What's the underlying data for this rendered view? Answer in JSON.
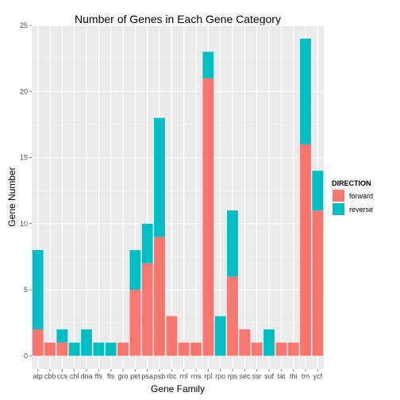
{
  "chart_data": {
    "type": "bar",
    "stacked": true,
    "title": "Number of Genes in Each Gene Category",
    "xlabel": "Gene Family",
    "ylabel": "Gene Number",
    "ylim": [
      -1,
      25
    ],
    "yticks": [
      0,
      5,
      10,
      15,
      20,
      25
    ],
    "grid": true,
    "legend": {
      "title": "DIRECTION",
      "position": "right"
    },
    "categories": [
      "atp",
      "cbb",
      "ccs",
      "chl",
      "dna",
      "ffs",
      "fts",
      "gro",
      "pet",
      "psa",
      "psb",
      "rbc",
      "rnl",
      "rns",
      "rpl",
      "rpo",
      "rps",
      "sec",
      "ssr",
      "suf",
      "tat",
      "thi",
      "trn",
      "ycf"
    ],
    "series": [
      {
        "name": "forward",
        "color": "#F8766D",
        "values": [
          2,
          1,
          1,
          0,
          0,
          0,
          0,
          1,
          5,
          7,
          9,
          3,
          1,
          1,
          21,
          0,
          6,
          2,
          1,
          0,
          1,
          1,
          16,
          11
        ]
      },
      {
        "name": "reverse",
        "color": "#00BFC4",
        "values": [
          6,
          0,
          1,
          1,
          2,
          1,
          1,
          0,
          3,
          3,
          9,
          0,
          0,
          0,
          2,
          3,
          5,
          0,
          0,
          2,
          0,
          0,
          8,
          3
        ]
      }
    ]
  }
}
